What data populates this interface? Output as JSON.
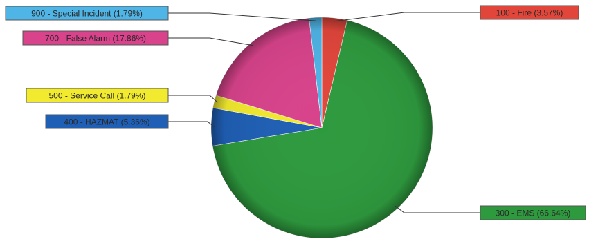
{
  "chart_data": {
    "type": "pie",
    "title": "",
    "slices": [
      {
        "label": "100 - Fire (3.57%)",
        "value": 3.57,
        "color": "#e2463b"
      },
      {
        "label": "300 - EMS (66.64%)",
        "value": 66.64,
        "color": "#2e9a3e"
      },
      {
        "label": "400 - HAZMAT (5.36%)",
        "value": 5.36,
        "color": "#1f5fb5"
      },
      {
        "label": "500 - Service Call (1.79%)",
        "value": 1.79,
        "color": "#f2ea2e"
      },
      {
        "label": "700 - False Alarm (17.86%)",
        "value": 17.86,
        "color": "#d8438b"
      },
      {
        "label": "900 - Special Incident (1.79%)",
        "value": 1.79,
        "color": "#4fb4e6"
      }
    ],
    "start_angle_deg": 0,
    "direction": "clockwise",
    "legend": "callout labels"
  }
}
